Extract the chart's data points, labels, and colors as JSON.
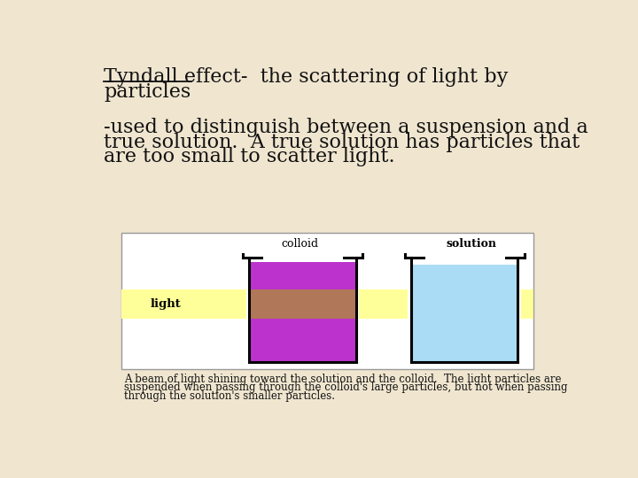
{
  "bg_color": "#f0e6d0",
  "diagram_bg": "#ffffff",
  "title_line1": "Tyndall effect-  the scattering of light by",
  "title_line2": "particles",
  "body_text": "-used to distinguish between a suspension and a\ntrue solution.  A true solution has particles that\nare too small to scatter light.",
  "caption_text": "A beam of light shining toward the solution and the colloid.  The light particles are\nsuspended when passing through the colloid's large particles, but not when passing\nthrough the solution's smaller particles.",
  "colloid_label": "colloid",
  "solution_label": "solution",
  "light_label": "light",
  "light_beam_color": "#ffff99",
  "colloid_color_top": "#bb33cc",
  "colloid_color_mid": "#b07858",
  "colloid_color_bot": "#bb33cc",
  "solution_color": "#aaddf5",
  "bg_color_title": "#f0e6d0",
  "font_size_title": 16,
  "font_size_body": 16,
  "font_size_caption": 8.5,
  "font_size_labels": 9,
  "font_size_light": 9.5
}
